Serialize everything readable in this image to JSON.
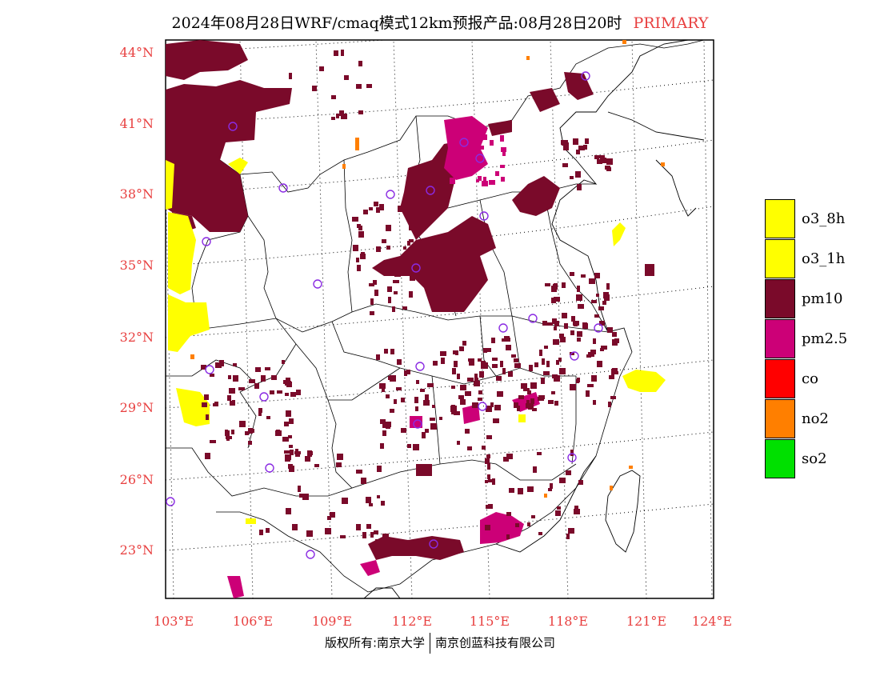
{
  "title": {
    "text": "2024年08月28日WRF/cmaq模式12km预报产品:08月28日20时",
    "tag": "PRIMARY"
  },
  "axes": {
    "lat_labels": [
      "44°N",
      "41°N",
      "38°N",
      "35°N",
      "32°N",
      "29°N",
      "26°N",
      "23°N"
    ],
    "lon_labels": [
      "103°E",
      "106°E",
      "109°E",
      "112°E",
      "115°E",
      "118°E",
      "121°E",
      "124°E"
    ]
  },
  "legend": [
    {
      "label": "o3_8h",
      "color": "#ffff00"
    },
    {
      "label": "o3_1h",
      "color": "#ffff00"
    },
    {
      "label": "pm10",
      "color": "#7a0a2a"
    },
    {
      "label": "pm2.5",
      "color": "#cc0077"
    },
    {
      "label": "co",
      "color": "#ff0000"
    },
    {
      "label": "no2",
      "color": "#ff7f00"
    },
    {
      "label": "so2",
      "color": "#00e000"
    }
  ],
  "footer": {
    "left": "版权所有:南京大学",
    "right": "南京创蓝科技有限公司"
  }
}
